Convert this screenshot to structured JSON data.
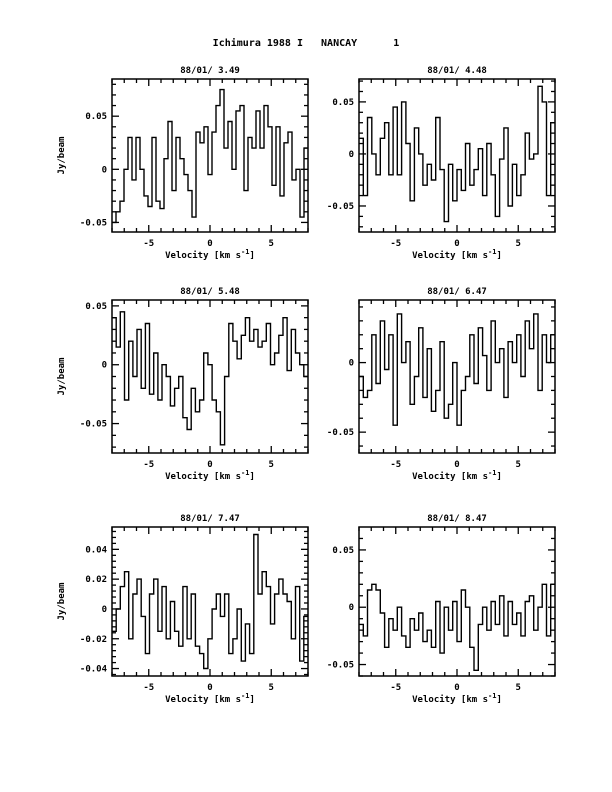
{
  "title": "Ichimura 1988 I   NANCAY      1",
  "chart_data": [
    {
      "type": "line",
      "title": "88/01/ 3.49",
      "xlabel": "Velocity [km s^-1]",
      "ylabel": "Jy/beam",
      "xlim": [
        -8,
        8
      ],
      "ylim": [
        -0.059,
        0.085
      ],
      "xticks": [
        -5,
        0,
        5
      ],
      "xtick_labels": [
        "-5",
        "0",
        "5"
      ],
      "yticks": [
        -0.05,
        0,
        0.05
      ],
      "ytick_labels": [
        "-0.05",
        "0",
        "0.05"
      ],
      "y": [
        -0.05,
        -0.04,
        -0.03,
        0.0,
        0.03,
        -0.01,
        0.03,
        0.0,
        -0.025,
        -0.035,
        0.03,
        -0.03,
        -0.037,
        0.01,
        0.045,
        -0.02,
        0.03,
        0.01,
        -0.005,
        -0.02,
        -0.045,
        0.035,
        0.025,
        0.04,
        -0.005,
        0.035,
        0.06,
        0.075,
        0.02,
        0.045,
        0.0,
        0.055,
        0.06,
        -0.02,
        0.03,
        0.02,
        0.055,
        0.02,
        0.06,
        0.04,
        -0.015,
        0.04,
        -0.025,
        0.025,
        0.035,
        -0.01,
        0.0,
        -0.045,
        0.02
      ]
    },
    {
      "type": "line",
      "title": "88/01/ 4.48",
      "xlabel": "Velocity [km s^-1]",
      "ylabel": "",
      "xlim": [
        -8,
        8
      ],
      "ylim": [
        -0.075,
        0.072
      ],
      "xticks": [
        -5,
        0,
        5
      ],
      "xtick_labels": [
        "-5",
        "0",
        "5"
      ],
      "yticks": [
        -0.05,
        0,
        0.05
      ],
      "ytick_labels": [
        "-0.05",
        "0",
        "0.05"
      ],
      "y": [
        0.015,
        -0.04,
        0.035,
        0.0,
        -0.02,
        0.015,
        0.03,
        -0.02,
        0.045,
        -0.02,
        0.05,
        0.01,
        -0.045,
        0.025,
        0.0,
        -0.03,
        -0.01,
        -0.025,
        0.035,
        -0.015,
        -0.065,
        -0.01,
        -0.045,
        -0.015,
        -0.035,
        0.01,
        -0.03,
        -0.015,
        0.005,
        -0.04,
        0.01,
        -0.02,
        -0.06,
        -0.005,
        0.025,
        -0.05,
        -0.01,
        -0.04,
        -0.02,
        0.02,
        -0.005,
        0.0,
        0.065,
        0.05,
        -0.04,
        0.03
      ]
    },
    {
      "type": "line",
      "title": "88/01/ 5.48",
      "xlabel": "Velocity [km s^-1]",
      "ylabel": "Jy/beam",
      "xlim": [
        -8,
        8
      ],
      "ylim": [
        -0.075,
        0.055
      ],
      "xticks": [
        -5,
        0,
        5
      ],
      "xtick_labels": [
        "-5",
        "0",
        "5"
      ],
      "yticks": [
        -0.05,
        0,
        0.05
      ],
      "ytick_labels": [
        "-0.05",
        "0",
        "0.05"
      ],
      "y": [
        0.04,
        0.015,
        0.045,
        -0.03,
        0.02,
        -0.01,
        0.03,
        -0.02,
        0.035,
        -0.025,
        0.01,
        -0.03,
        0.0,
        -0.01,
        -0.035,
        -0.02,
        -0.01,
        -0.045,
        -0.055,
        -0.02,
        -0.04,
        -0.03,
        0.01,
        0.0,
        -0.03,
        -0.04,
        -0.068,
        -0.01,
        0.035,
        0.02,
        0.005,
        0.025,
        0.04,
        0.02,
        0.03,
        0.015,
        0.02,
        0.035,
        0.0,
        0.01,
        0.025,
        0.04,
        -0.005,
        0.03,
        0.01,
        0.0,
        -0.01
      ]
    },
    {
      "type": "line",
      "title": "88/01/ 6.47",
      "xlabel": "Velocity [km s^-1]",
      "ylabel": "",
      "xlim": [
        -8,
        8
      ],
      "ylim": [
        -0.065,
        0.045
      ],
      "xticks": [
        -5,
        0,
        5
      ],
      "xtick_labels": [
        "-5",
        "0",
        "5"
      ],
      "yticks": [
        -0.05,
        0
      ],
      "ytick_labels": [
        "-0.05",
        "0"
      ],
      "y": [
        -0.01,
        -0.025,
        -0.02,
        0.02,
        -0.015,
        0.03,
        -0.005,
        0.02,
        -0.045,
        0.035,
        0.0,
        0.015,
        -0.03,
        -0.01,
        0.025,
        -0.025,
        0.01,
        -0.035,
        -0.02,
        0.015,
        -0.04,
        -0.03,
        0.0,
        -0.045,
        -0.02,
        -0.01,
        0.02,
        -0.015,
        0.025,
        0.005,
        -0.02,
        0.03,
        0.0,
        0.01,
        -0.025,
        0.015,
        0.0,
        0.02,
        -0.01,
        0.03,
        0.01,
        0.035,
        -0.02,
        0.02,
        0.0,
        0.02
      ]
    },
    {
      "type": "line",
      "title": "88/01/ 7.47",
      "xlabel": "Velocity [km s^-1]",
      "ylabel": "Jy/beam",
      "xlim": [
        -8,
        8
      ],
      "ylim": [
        -0.045,
        0.055
      ],
      "xticks": [
        -5,
        0,
        5
      ],
      "xtick_labels": [
        "-5",
        "0",
        "5"
      ],
      "yticks": [
        -0.04,
        -0.02,
        0,
        0.02,
        0.04
      ],
      "ytick_labels": [
        "-0.04",
        "-0.02",
        "0",
        "0.02",
        "0.04"
      ],
      "y": [
        -0.015,
        0.0,
        0.015,
        0.025,
        -0.02,
        0.01,
        0.02,
        -0.005,
        -0.03,
        0.01,
        0.02,
        -0.015,
        0.015,
        -0.02,
        0.005,
        -0.015,
        -0.025,
        0.015,
        -0.02,
        0.01,
        -0.025,
        -0.03,
        -0.04,
        -0.02,
        0.0,
        0.01,
        -0.005,
        0.01,
        -0.03,
        -0.02,
        0.0,
        -0.035,
        -0.01,
        -0.03,
        0.05,
        0.01,
        0.025,
        0.015,
        -0.01,
        0.01,
        0.02,
        0.01,
        0.005,
        -0.02,
        0.015,
        -0.035,
        -0.005
      ]
    },
    {
      "type": "line",
      "title": "88/01/ 8.47",
      "xlabel": "Velocity [km s^-1]",
      "ylabel": "",
      "xlim": [
        -8,
        8
      ],
      "ylim": [
        -0.06,
        0.07
      ],
      "xticks": [
        -5,
        0,
        5
      ],
      "xtick_labels": [
        "-5",
        "0",
        "5"
      ],
      "yticks": [
        -0.05,
        0,
        0.05
      ],
      "ytick_labels": [
        "-0.05",
        "0",
        "0.05"
      ],
      "y": [
        -0.015,
        -0.025,
        0.015,
        0.02,
        0.015,
        -0.005,
        -0.035,
        -0.01,
        -0.02,
        0.0,
        -0.025,
        -0.035,
        -0.01,
        -0.02,
        -0.005,
        -0.03,
        -0.02,
        -0.035,
        0.005,
        -0.04,
        0.0,
        -0.02,
        0.005,
        -0.03,
        0.015,
        0.0,
        -0.035,
        -0.055,
        -0.015,
        0.0,
        -0.02,
        0.005,
        -0.015,
        0.01,
        -0.025,
        0.005,
        -0.015,
        -0.005,
        -0.025,
        0.005,
        0.01,
        -0.02,
        0.0,
        0.02,
        -0.025,
        0.02
      ]
    }
  ]
}
